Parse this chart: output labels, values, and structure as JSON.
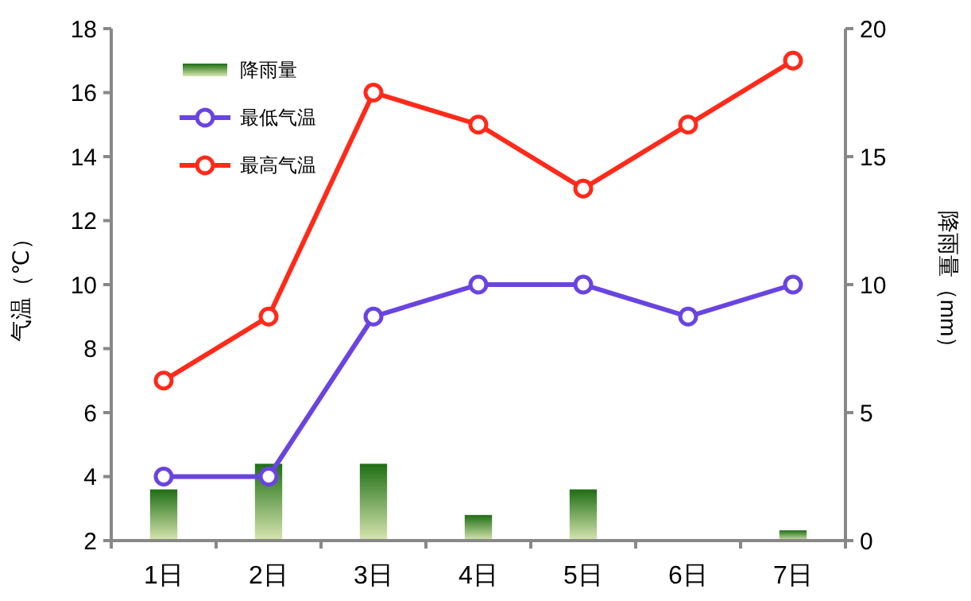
{
  "chart_data": {
    "type": "bar",
    "categories": [
      "1日",
      "2日",
      "3日",
      "4日",
      "5日",
      "6日",
      "7日"
    ],
    "ylabel": "气温（℃）",
    "y2label": "降雨量（mm）",
    "ylim": [
      2,
      18
    ],
    "yticks": [
      2,
      4,
      6,
      8,
      10,
      12,
      14,
      16,
      18
    ],
    "y2lim": [
      0,
      20
    ],
    "y2ticks": [
      0,
      5,
      10,
      15,
      20
    ],
    "series": [
      {
        "name": "降雨量",
        "axis": "y2",
        "color": "#1e6e14",
        "values": [
          2,
          3,
          3,
          1,
          2,
          0,
          0.4
        ]
      },
      {
        "name": "最低气温",
        "type": "line",
        "color": "#6a44e0",
        "values": [
          4,
          4,
          9,
          10,
          10,
          9,
          10
        ]
      },
      {
        "name": "最高气温",
        "type": "line",
        "color": "#ff2a1a",
        "values": [
          7,
          9,
          16,
          15,
          13,
          15,
          17
        ]
      }
    ],
    "legend": "top left",
    "marker": "circle",
    "line_style": "solid",
    "grid": false
  }
}
